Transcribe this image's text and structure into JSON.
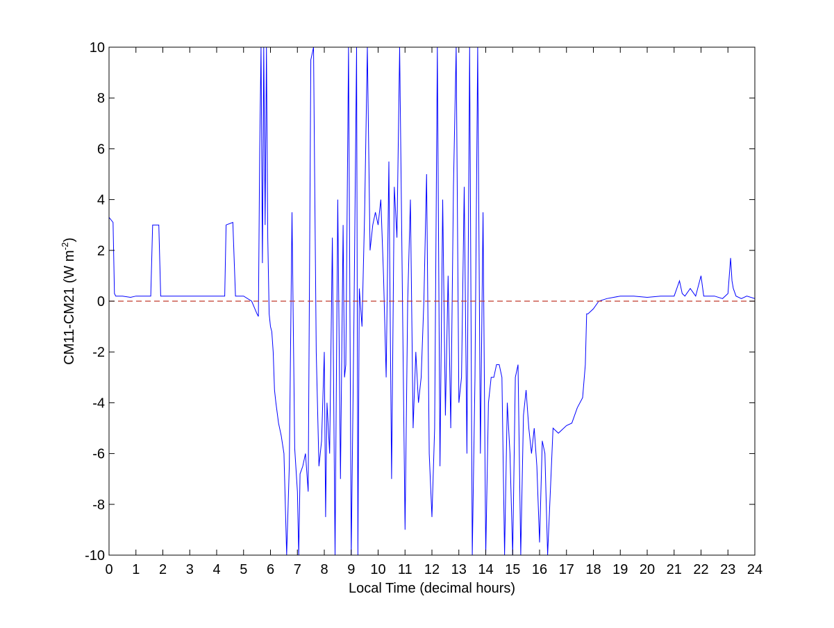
{
  "chart_data": {
    "type": "line",
    "title": "",
    "xlabel": "Local Time (decimal hours)",
    "ylabel_main": "CM11-CM21 (W m",
    "ylabel_sup": "-2",
    "ylabel_close": ")",
    "xlim": [
      0,
      24
    ],
    "ylim": [
      -10,
      10
    ],
    "xticks": [
      0,
      1,
      2,
      3,
      4,
      5,
      6,
      7,
      8,
      9,
      10,
      11,
      12,
      13,
      14,
      15,
      16,
      17,
      18,
      19,
      20,
      21,
      22,
      23,
      24
    ],
    "yticks": [
      -10,
      -8,
      -6,
      -4,
      -2,
      0,
      2,
      4,
      6,
      8,
      10
    ],
    "grid": false,
    "legend": "none",
    "colors": {
      "series": "#0000ff",
      "zero_line": "#c0392b",
      "axes": "#000000"
    },
    "zero_line": {
      "y": 0,
      "style": "dashed"
    },
    "series": [
      {
        "values_x": [
          0.0,
          0.15,
          0.2,
          0.25,
          0.5,
          0.8,
          1.0,
          1.3,
          1.55,
          1.62,
          1.85,
          1.92,
          2.2,
          2.5,
          3.0,
          3.5,
          4.0,
          4.3,
          4.35,
          4.6,
          4.7,
          5.0,
          5.3,
          5.5,
          5.55,
          5.6,
          5.65,
          5.7,
          5.75,
          5.8,
          5.85,
          5.9,
          5.95,
          6.0,
          6.05,
          6.1,
          6.15,
          6.2,
          6.3,
          6.4,
          6.5,
          6.6,
          6.7,
          6.8,
          6.9,
          7.0,
          7.05,
          7.1,
          7.2,
          7.3,
          7.4,
          7.5,
          7.6,
          7.65,
          7.7,
          7.8,
          7.9,
          8.0,
          8.05,
          8.1,
          8.2,
          8.3,
          8.4,
          8.5,
          8.6,
          8.7,
          8.75,
          8.8,
          8.9,
          9.0,
          9.1,
          9.2,
          9.25,
          9.3,
          9.4,
          9.5,
          9.6,
          9.7,
          9.8,
          9.9,
          10.0,
          10.1,
          10.2,
          10.3,
          10.4,
          10.5,
          10.6,
          10.7,
          10.8,
          10.9,
          11.0,
          11.1,
          11.2,
          11.3,
          11.4,
          11.5,
          11.6,
          11.7,
          11.8,
          11.9,
          12.0,
          12.1,
          12.2,
          12.3,
          12.4,
          12.5,
          12.6,
          12.7,
          12.8,
          12.9,
          13.0,
          13.1,
          13.2,
          13.3,
          13.4,
          13.5,
          13.6,
          13.7,
          13.8,
          13.9,
          14.0,
          14.1,
          14.2,
          14.3,
          14.4,
          14.5,
          14.6,
          14.7,
          14.8,
          14.9,
          15.0,
          15.1,
          15.2,
          15.3,
          15.4,
          15.5,
          15.6,
          15.7,
          15.8,
          15.9,
          16.0,
          16.1,
          16.2,
          16.3,
          16.5,
          16.7,
          17.0,
          17.2,
          17.4,
          17.6,
          17.7,
          17.75,
          17.8,
          18.0,
          18.2,
          18.5,
          19.0,
          19.5,
          20.0,
          20.5,
          21.0,
          21.2,
          21.3,
          21.4,
          21.6,
          21.8,
          22.0,
          22.1,
          22.5,
          22.8,
          23.0,
          23.1,
          23.15,
          23.2,
          23.3,
          23.5,
          23.7,
          24.0
        ],
        "values_y": [
          3.3,
          3.1,
          0.3,
          0.2,
          0.2,
          0.15,
          0.2,
          0.2,
          0.2,
          3.0,
          3.0,
          0.2,
          0.2,
          0.2,
          0.2,
          0.2,
          0.2,
          0.2,
          3.0,
          3.1,
          0.2,
          0.2,
          0.0,
          -0.5,
          -0.6,
          6.0,
          10.0,
          1.5,
          10.0,
          3.0,
          10.0,
          2.5,
          -0.5,
          -1.0,
          -1.2,
          -2.0,
          -3.5,
          -4.0,
          -4.8,
          -5.3,
          -6.0,
          -10.0,
          -6.5,
          3.5,
          -5.8,
          -7.5,
          -10.0,
          -6.8,
          -6.5,
          -6.0,
          -7.5,
          9.5,
          10.0,
          4.0,
          -2.0,
          -6.5,
          -5.5,
          -2.0,
          -8.5,
          -4.0,
          -6.0,
          2.5,
          -10.0,
          4.0,
          -7.0,
          3.0,
          -3.0,
          -2.5,
          10.0,
          -10.0,
          -1.0,
          10.0,
          -10.0,
          0.5,
          -1.0,
          3.5,
          10.0,
          2.0,
          3.0,
          3.5,
          3.0,
          4.0,
          1.0,
          -3.0,
          5.5,
          -7.0,
          4.5,
          2.5,
          10.0,
          0.5,
          -9.0,
          0.0,
          4.0,
          -5.0,
          -2.0,
          -4.0,
          -3.0,
          0.0,
          5.0,
          -6.0,
          -8.5,
          -5.0,
          10.0,
          -6.5,
          4.0,
          -4.5,
          1.0,
          -5.0,
          4.5,
          10.0,
          -4.0,
          -3.0,
          4.5,
          -6.0,
          10.0,
          -10.0,
          -3.0,
          10.0,
          -6.0,
          3.5,
          -10.0,
          -4.0,
          -3.0,
          -3.0,
          -2.5,
          -2.5,
          -3.0,
          -10.0,
          -4.0,
          -6.0,
          -10.0,
          -3.0,
          -2.5,
          -10.0,
          -4.5,
          -3.5,
          -5.0,
          -6.0,
          -5.0,
          -6.5,
          -9.5,
          -5.5,
          -6.0,
          -10.0,
          -5.0,
          -5.2,
          -4.9,
          -4.8,
          -4.2,
          -3.8,
          -2.5,
          -0.5,
          -0.5,
          -0.3,
          0.0,
          0.1,
          0.2,
          0.2,
          0.15,
          0.2,
          0.2,
          0.8,
          0.3,
          0.2,
          0.5,
          0.2,
          1.0,
          0.2,
          0.2,
          0.1,
          0.3,
          1.7,
          0.8,
          0.5,
          0.2,
          0.1,
          0.2,
          0.1
        ]
      }
    ]
  }
}
